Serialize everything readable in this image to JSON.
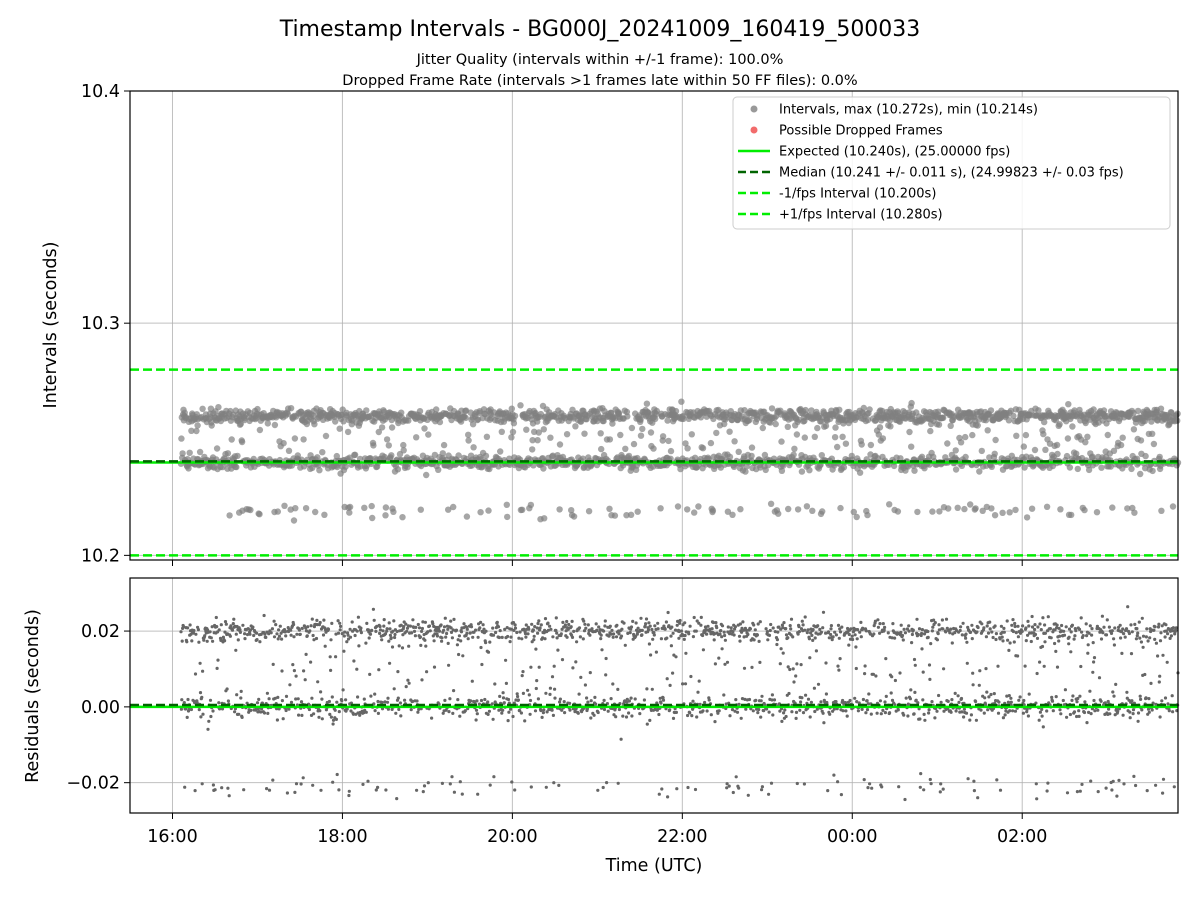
{
  "title": "Timestamp Intervals - BG000J_20241009_160419_500033",
  "subtitle_1": "Jitter Quality (intervals within +/-1 frame): 100.0%",
  "subtitle_2": "Dropped Frame Rate (intervals >1 frames late within 50 FF files): 0.0%",
  "chart_data": [
    {
      "type": "scatter",
      "panel": "top",
      "ylabel": "Intervals (seconds)",
      "xlabel": "",
      "xlim": [
        "15:30",
        "03:50"
      ],
      "ylim": [
        10.198,
        10.4
      ],
      "yticks": [
        10.2,
        10.3,
        10.4
      ],
      "ytick_labels": [
        "10.2",
        "10.3",
        "10.4"
      ],
      "xticks": [
        "16:00",
        "18:00",
        "20:00",
        "22:00",
        "00:00",
        "02:00"
      ],
      "grid": true,
      "legend_position": "top-right",
      "series": [
        {
          "name": "Intervals, max (10.272s), min (10.214s)",
          "kind": "scatter",
          "color": "#808080",
          "clusters": [
            {
              "center": 10.26,
              "spread": 0.0015,
              "share": 0.45
            },
            {
              "center": 10.24,
              "spread": 0.0015,
              "share": 0.4
            },
            {
              "center": 10.25,
              "spread": 0.006,
              "share": 0.1
            },
            {
              "center": 10.219,
              "spread": 0.0015,
              "share": 0.05
            }
          ],
          "x_range": [
            "16:06",
            "03:50"
          ],
          "max": 10.272,
          "min": 10.214
        },
        {
          "name": "Possible Dropped Frames",
          "kind": "scatter",
          "color": "#f26b6b",
          "values": []
        },
        {
          "name": "Expected (10.240s), (25.00000 fps)",
          "kind": "hline",
          "value": 10.24,
          "color": "#00ee00",
          "style": "solid"
        },
        {
          "name": "Median (10.241 +/- 0.011 s), (24.99823 +/- 0.03 fps)",
          "kind": "hline",
          "value": 10.2405,
          "color": "#006400",
          "style": "dashed"
        },
        {
          "name": "-1/fps Interval (10.200s)",
          "kind": "hline",
          "value": 10.2,
          "color": "#00ee00",
          "style": "dashed"
        },
        {
          "name": "+1/fps Interval (10.280s)",
          "kind": "hline",
          "value": 10.28,
          "color": "#00ee00",
          "style": "dashed"
        }
      ]
    },
    {
      "type": "scatter",
      "panel": "bottom",
      "ylabel": "Residuals (seconds)",
      "xlabel": "Time (UTC)",
      "xlim": [
        "15:30",
        "03:50"
      ],
      "ylim": [
        -0.028,
        0.034
      ],
      "yticks": [
        -0.02,
        0.0,
        0.02
      ],
      "ytick_labels": [
        "−0.02",
        "0.00",
        "0.02"
      ],
      "xticks": [
        "16:00",
        "18:00",
        "20:00",
        "22:00",
        "00:00",
        "02:00"
      ],
      "grid": true,
      "series": [
        {
          "name": "",
          "kind": "scatter",
          "color": "#666666",
          "clusters": [
            {
              "center": 0.02,
              "spread": 0.0015,
              "share": 0.45
            },
            {
              "center": 0.0,
              "spread": 0.0015,
              "share": 0.4
            },
            {
              "center": 0.01,
              "spread": 0.006,
              "share": 0.1
            },
            {
              "center": -0.021,
              "spread": 0.0015,
              "share": 0.05
            }
          ],
          "x_range": [
            "16:06",
            "03:50"
          ]
        },
        {
          "name": "",
          "kind": "hline",
          "value": 0.0,
          "color": "#00ee00",
          "style": "solid"
        },
        {
          "name": "",
          "kind": "hline",
          "value": 0.0005,
          "color": "#006400",
          "style": "dashed"
        }
      ]
    }
  ]
}
